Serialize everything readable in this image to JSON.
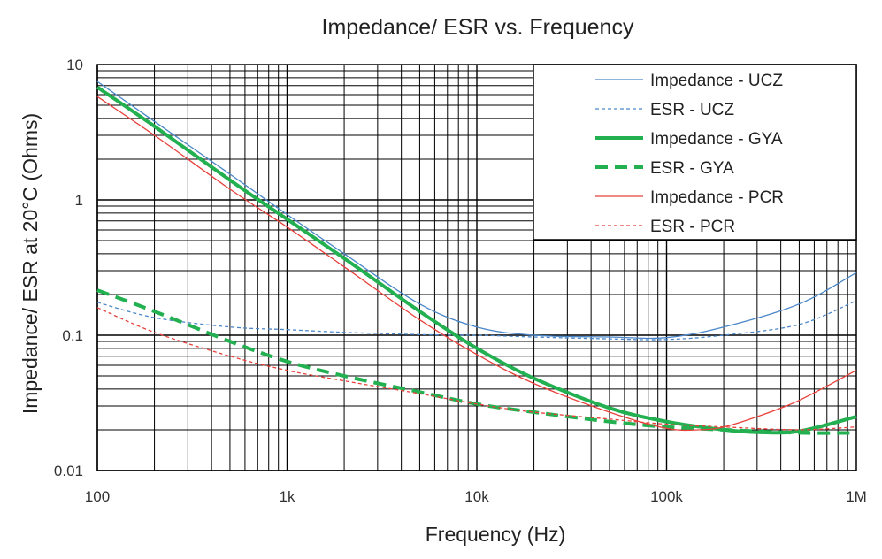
{
  "chart_data": {
    "type": "line",
    "title": "Impedance/ ESR vs. Frequency",
    "xlabel": "Frequency (Hz)",
    "ylabel": "Impedance/ ESR at 20°C (Ohms)",
    "x_scale": "log",
    "y_scale": "log",
    "xlim": [
      100,
      1000000
    ],
    "ylim": [
      0.01,
      10
    ],
    "x_ticks": [
      {
        "value": 100,
        "label": "100"
      },
      {
        "value": 1000,
        "label": "1k"
      },
      {
        "value": 10000,
        "label": "10k"
      },
      {
        "value": 100000,
        "label": "100k"
      },
      {
        "value": 1000000,
        "label": "1M"
      }
    ],
    "y_ticks": [
      {
        "value": 10,
        "label": "10"
      },
      {
        "value": 1,
        "label": "1"
      },
      {
        "value": 0.1,
        "label": "0.1"
      },
      {
        "value": 0.01,
        "label": "0.01"
      }
    ],
    "grid": true,
    "legend_position": "top-right",
    "series": [
      {
        "name": "Impedance - UCZ",
        "color": "#4a86c8",
        "style": "solid",
        "width": 1.3,
        "points": [
          [
            100,
            7.5
          ],
          [
            200,
            3.8
          ],
          [
            500,
            1.55
          ],
          [
            1000,
            0.78
          ],
          [
            2000,
            0.4
          ],
          [
            5000,
            0.17
          ],
          [
            10000,
            0.115
          ],
          [
            20000,
            0.1
          ],
          [
            50000,
            0.097
          ],
          [
            100000,
            0.096
          ],
          [
            200000,
            0.115
          ],
          [
            500000,
            0.17
          ],
          [
            1000000,
            0.29
          ]
        ]
      },
      {
        "name": "ESR - UCZ",
        "color": "#4a86c8",
        "style": "dashed",
        "width": 1.3,
        "points": [
          [
            100,
            0.175
          ],
          [
            200,
            0.135
          ],
          [
            500,
            0.115
          ],
          [
            1000,
            0.11
          ],
          [
            2000,
            0.105
          ],
          [
            5000,
            0.101
          ],
          [
            10000,
            0.1
          ],
          [
            20000,
            0.097
          ],
          [
            50000,
            0.094
          ],
          [
            100000,
            0.093
          ],
          [
            200000,
            0.1
          ],
          [
            500000,
            0.12
          ],
          [
            1000000,
            0.18
          ]
        ]
      },
      {
        "name": "Impedance - GYA",
        "color": "#22b050",
        "style": "solid",
        "width": 4,
        "points": [
          [
            100,
            6.8
          ],
          [
            200,
            3.5
          ],
          [
            500,
            1.4
          ],
          [
            1000,
            0.72
          ],
          [
            2000,
            0.37
          ],
          [
            5000,
            0.15
          ],
          [
            10000,
            0.08
          ],
          [
            20000,
            0.048
          ],
          [
            50000,
            0.029
          ],
          [
            100000,
            0.023
          ],
          [
            200000,
            0.02
          ],
          [
            300000,
            0.0192
          ],
          [
            500000,
            0.0195
          ],
          [
            1000000,
            0.025
          ]
        ]
      },
      {
        "name": "ESR - GYA",
        "color": "#22b050",
        "style": "dashed",
        "width": 4,
        "points": [
          [
            100,
            0.215
          ],
          [
            200,
            0.15
          ],
          [
            500,
            0.09
          ],
          [
            1000,
            0.064
          ],
          [
            2000,
            0.05
          ],
          [
            5000,
            0.038
          ],
          [
            10000,
            0.031
          ],
          [
            20000,
            0.027
          ],
          [
            50000,
            0.023
          ],
          [
            100000,
            0.021
          ],
          [
            200000,
            0.02
          ],
          [
            500000,
            0.019
          ],
          [
            1000000,
            0.019
          ]
        ]
      },
      {
        "name": "Impedance - PCR",
        "color": "#e8403a",
        "style": "solid",
        "width": 1.3,
        "points": [
          [
            100,
            5.8
          ],
          [
            200,
            3.0
          ],
          [
            500,
            1.2
          ],
          [
            1000,
            0.63
          ],
          [
            2000,
            0.32
          ],
          [
            5000,
            0.13
          ],
          [
            10000,
            0.072
          ],
          [
            20000,
            0.044
          ],
          [
            50000,
            0.027
          ],
          [
            100000,
            0.0205
          ],
          [
            150000,
            0.02
          ],
          [
            200000,
            0.021
          ],
          [
            300000,
            0.025
          ],
          [
            500000,
            0.033
          ],
          [
            1000000,
            0.055
          ]
        ]
      },
      {
        "name": "ESR - PCR",
        "color": "#e8403a",
        "style": "dashed",
        "width": 1.3,
        "points": [
          [
            100,
            0.16
          ],
          [
            200,
            0.105
          ],
          [
            500,
            0.07
          ],
          [
            1000,
            0.055
          ],
          [
            2000,
            0.046
          ],
          [
            5000,
            0.037
          ],
          [
            10000,
            0.031
          ],
          [
            20000,
            0.027
          ],
          [
            50000,
            0.024
          ],
          [
            100000,
            0.022
          ],
          [
            200000,
            0.021
          ],
          [
            500000,
            0.02
          ],
          [
            1000000,
            0.021
          ]
        ]
      }
    ]
  }
}
